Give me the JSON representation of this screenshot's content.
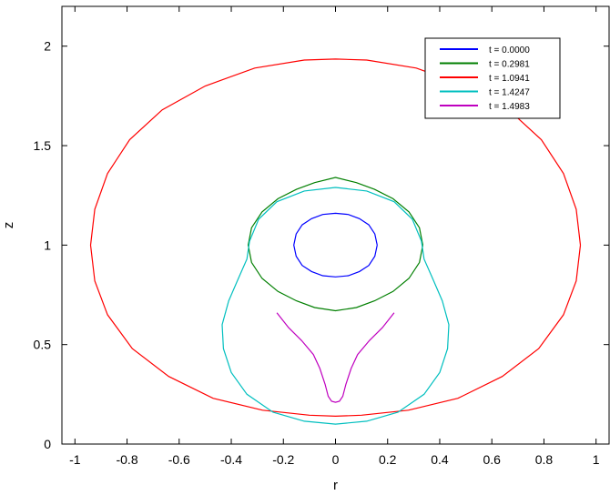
{
  "chart_data": {
    "type": "line",
    "title": "",
    "xlabel": "r",
    "ylabel": "z",
    "xlim": [
      -1.05,
      1.05
    ],
    "ylim": [
      0,
      2.2
    ],
    "xticks": [
      -1,
      -0.8,
      -0.6,
      -0.4,
      -0.2,
      0,
      0.2,
      0.4,
      0.6,
      0.8,
      1
    ],
    "xtick_labels": [
      "-1",
      "-0.8",
      "-0.6",
      "-0.4",
      "-0.2",
      "0",
      "0.2",
      "0.4",
      "0.6",
      "0.8",
      "1"
    ],
    "yticks": [
      0,
      0.5,
      1,
      1.5,
      2
    ],
    "ytick_labels": [
      "0",
      "0.5",
      "1",
      "1.5",
      "2"
    ],
    "grid": false,
    "legend_position": "top-right",
    "series": [
      {
        "name": "t = 0.0000",
        "color": "#0000ff",
        "points": [
          [
            0.16,
            1.0
          ],
          [
            0.151,
            1.056
          ],
          [
            0.128,
            1.102
          ],
          [
            0.092,
            1.133
          ],
          [
            0.049,
            1.154
          ],
          [
            0.0,
            1.16
          ],
          [
            -0.049,
            1.154
          ],
          [
            -0.092,
            1.133
          ],
          [
            -0.128,
            1.102
          ],
          [
            -0.151,
            1.056
          ],
          [
            -0.16,
            1.0
          ],
          [
            -0.151,
            0.944
          ],
          [
            -0.128,
            0.898
          ],
          [
            -0.092,
            0.867
          ],
          [
            -0.049,
            0.846
          ],
          [
            0.0,
            0.84
          ],
          [
            0.049,
            0.846
          ],
          [
            0.092,
            0.867
          ],
          [
            0.128,
            0.898
          ],
          [
            0.151,
            0.944
          ],
          [
            0.16,
            1.0
          ]
        ]
      },
      {
        "name": "t = 0.2981",
        "color": "#007f00",
        "points": [
          [
            0.335,
            1.0
          ],
          [
            0.322,
            1.087
          ],
          [
            0.282,
            1.167
          ],
          [
            0.221,
            1.233
          ],
          [
            0.15,
            1.28
          ],
          [
            0.08,
            1.314
          ],
          [
            0.0,
            1.34
          ],
          [
            -0.08,
            1.314
          ],
          [
            -0.15,
            1.28
          ],
          [
            -0.221,
            1.233
          ],
          [
            -0.282,
            1.167
          ],
          [
            -0.322,
            1.087
          ],
          [
            -0.335,
            1.0
          ],
          [
            -0.322,
            0.913
          ],
          [
            -0.282,
            0.833
          ],
          [
            -0.221,
            0.767
          ],
          [
            -0.15,
            0.72
          ],
          [
            -0.08,
            0.686
          ],
          [
            0.0,
            0.67
          ],
          [
            0.08,
            0.686
          ],
          [
            0.15,
            0.72
          ],
          [
            0.221,
            0.767
          ],
          [
            0.282,
            0.833
          ],
          [
            0.322,
            0.913
          ],
          [
            0.335,
            1.0
          ]
        ]
      },
      {
        "name": "t = 1.0941",
        "color": "#ff0000",
        "points": [
          [
            0.94,
            1.0
          ],
          [
            0.924,
            1.18
          ],
          [
            0.875,
            1.36
          ],
          [
            0.79,
            1.53
          ],
          [
            0.665,
            1.68
          ],
          [
            0.5,
            1.8
          ],
          [
            0.31,
            1.89
          ],
          [
            0.12,
            1.93
          ],
          [
            0.0,
            1.935
          ],
          [
            -0.12,
            1.93
          ],
          [
            -0.31,
            1.89
          ],
          [
            -0.5,
            1.8
          ],
          [
            -0.665,
            1.68
          ],
          [
            -0.79,
            1.53
          ],
          [
            -0.875,
            1.36
          ],
          [
            -0.924,
            1.18
          ],
          [
            -0.94,
            1.0
          ],
          [
            -0.924,
            0.82
          ],
          [
            -0.875,
            0.65
          ],
          [
            -0.78,
            0.48
          ],
          [
            -0.64,
            0.34
          ],
          [
            -0.47,
            0.23
          ],
          [
            -0.28,
            0.17
          ],
          [
            -0.1,
            0.145
          ],
          [
            0.0,
            0.14
          ],
          [
            0.1,
            0.145
          ],
          [
            0.28,
            0.17
          ],
          [
            0.47,
            0.23
          ],
          [
            0.64,
            0.34
          ],
          [
            0.78,
            0.48
          ],
          [
            0.875,
            0.65
          ],
          [
            0.924,
            0.82
          ],
          [
            0.94,
            1.0
          ]
        ]
      },
      {
        "name": "t = 1.4247",
        "color": "#00bfbf",
        "points": [
          [
            0.0,
            1.29
          ],
          [
            0.12,
            1.272
          ],
          [
            0.225,
            1.218
          ],
          [
            0.295,
            1.13
          ],
          [
            0.33,
            1.02
          ],
          [
            0.34,
            0.93
          ],
          [
            0.37,
            0.84
          ],
          [
            0.41,
            0.72
          ],
          [
            0.435,
            0.6
          ],
          [
            0.43,
            0.48
          ],
          [
            0.4,
            0.36
          ],
          [
            0.34,
            0.25
          ],
          [
            0.24,
            0.16
          ],
          [
            0.12,
            0.115
          ],
          [
            0.0,
            0.1
          ],
          [
            -0.12,
            0.115
          ],
          [
            -0.24,
            0.16
          ],
          [
            -0.34,
            0.25
          ],
          [
            -0.4,
            0.36
          ],
          [
            -0.43,
            0.48
          ],
          [
            -0.435,
            0.6
          ],
          [
            -0.41,
            0.72
          ],
          [
            -0.37,
            0.84
          ],
          [
            -0.34,
            0.93
          ],
          [
            -0.33,
            1.02
          ],
          [
            -0.295,
            1.13
          ],
          [
            -0.225,
            1.218
          ],
          [
            -0.12,
            1.272
          ],
          [
            0.0,
            1.29
          ]
        ]
      },
      {
        "name": "t = 1.4983",
        "color": "#bf00bf",
        "points": [
          [
            -0.225,
            0.66
          ],
          [
            -0.18,
            0.585
          ],
          [
            -0.13,
            0.52
          ],
          [
            -0.085,
            0.45
          ],
          [
            -0.06,
            0.38
          ],
          [
            -0.04,
            0.3
          ],
          [
            -0.028,
            0.24
          ],
          [
            -0.015,
            0.215
          ],
          [
            0.0,
            0.21
          ],
          [
            0.015,
            0.215
          ],
          [
            0.028,
            0.24
          ],
          [
            0.04,
            0.3
          ],
          [
            0.06,
            0.38
          ],
          [
            0.085,
            0.45
          ],
          [
            0.13,
            0.52
          ],
          [
            0.18,
            0.585
          ],
          [
            0.225,
            0.66
          ]
        ]
      }
    ],
    "legend": [
      "t = 0.0000",
      "t = 0.2981",
      "t = 1.0941",
      "t = 1.4247",
      "t = 1.4983"
    ]
  }
}
